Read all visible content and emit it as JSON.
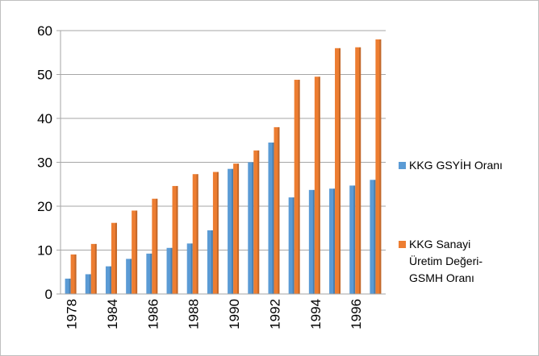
{
  "chart_data": {
    "type": "bar",
    "categories": [
      "1978",
      null,
      "1984",
      null,
      "1986",
      null,
      "1988",
      null,
      "1990",
      null,
      "1992",
      null,
      "1994",
      null,
      "1996",
      null
    ],
    "series": [
      {
        "name": "KKG GSYİH Oranı",
        "color": "#5b9bd5",
        "values": [
          3.5,
          4.5,
          6.3,
          8,
          9.2,
          10.5,
          11.5,
          14.5,
          28.5,
          30,
          34.5,
          22,
          23.7,
          24,
          24.7,
          26
        ]
      },
      {
        "name": "KKG Sanayi Üretim Değeri- GSMH Oranı",
        "color": "#ed7d31",
        "values": [
          9,
          11.4,
          16.2,
          19,
          21.7,
          24.6,
          27.3,
          27.8,
          29.7,
          32.7,
          38,
          48.8,
          49.5,
          56,
          56.2,
          58
        ]
      }
    ],
    "ylim": [
      0,
      60
    ],
    "yticks": [
      0,
      10,
      20,
      30,
      40,
      50,
      60
    ],
    "grid": true,
    "legend": "right"
  }
}
